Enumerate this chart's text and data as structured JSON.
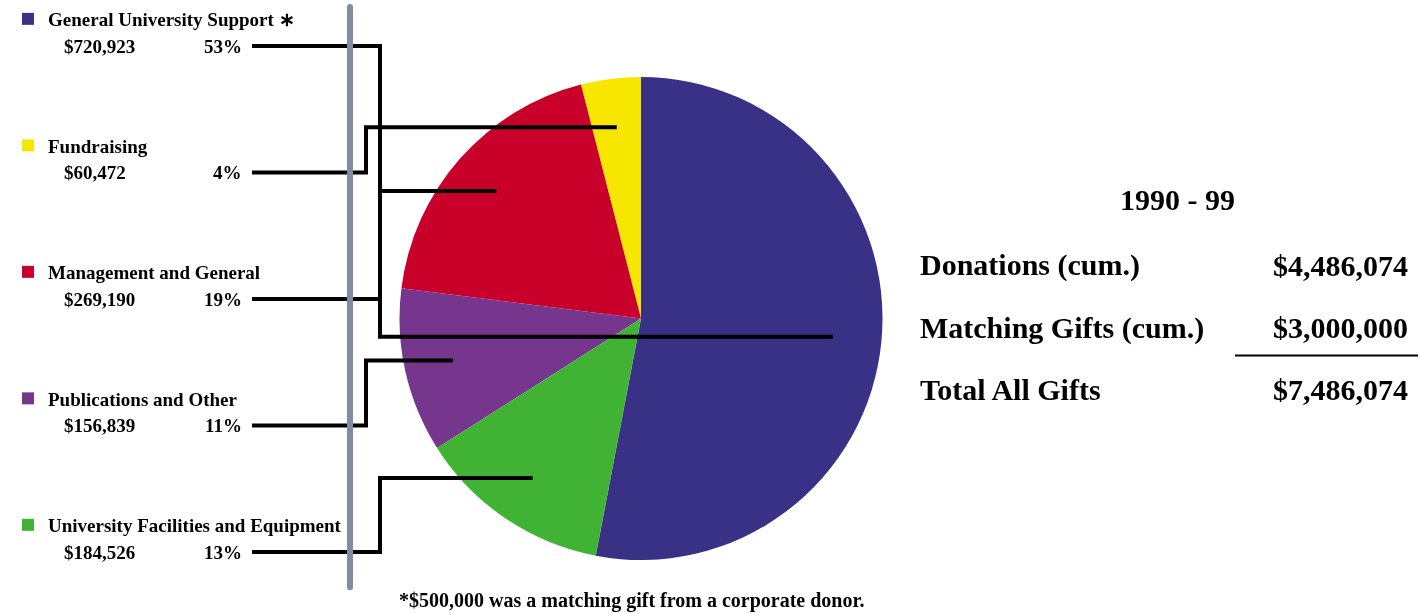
{
  "chart_data": [
    {
      "type": "pie",
      "categories": [
        "General University Support ∗",
        "Fundraising",
        "Management and General",
        "Publications and Other",
        "University Facilities and Equipment"
      ],
      "values": [
        53,
        4,
        19,
        11,
        13
      ],
      "value_labels": [
        "$720,923 53%",
        "$60,472 4%",
        "$269,190 19%",
        "$156,839 11%",
        "$184,526 13%"
      ],
      "colors": [
        "#393185",
        "#f7e600",
        "#c8002a",
        "#77368d",
        "#41b334"
      ],
      "legend": "left",
      "annotations": [
        "*$500,000 was a matching gift from a corporate donor."
      ]
    },
    {
      "type": "other",
      "title": "1990 - 99",
      "annotations": [
        "Donations (cum.)",
        "$4,486,074",
        "Matching Gifts (cum.)",
        "$3,000,000",
        "Total All Gifts",
        "$7,486,074"
      ]
    }
  ]
}
